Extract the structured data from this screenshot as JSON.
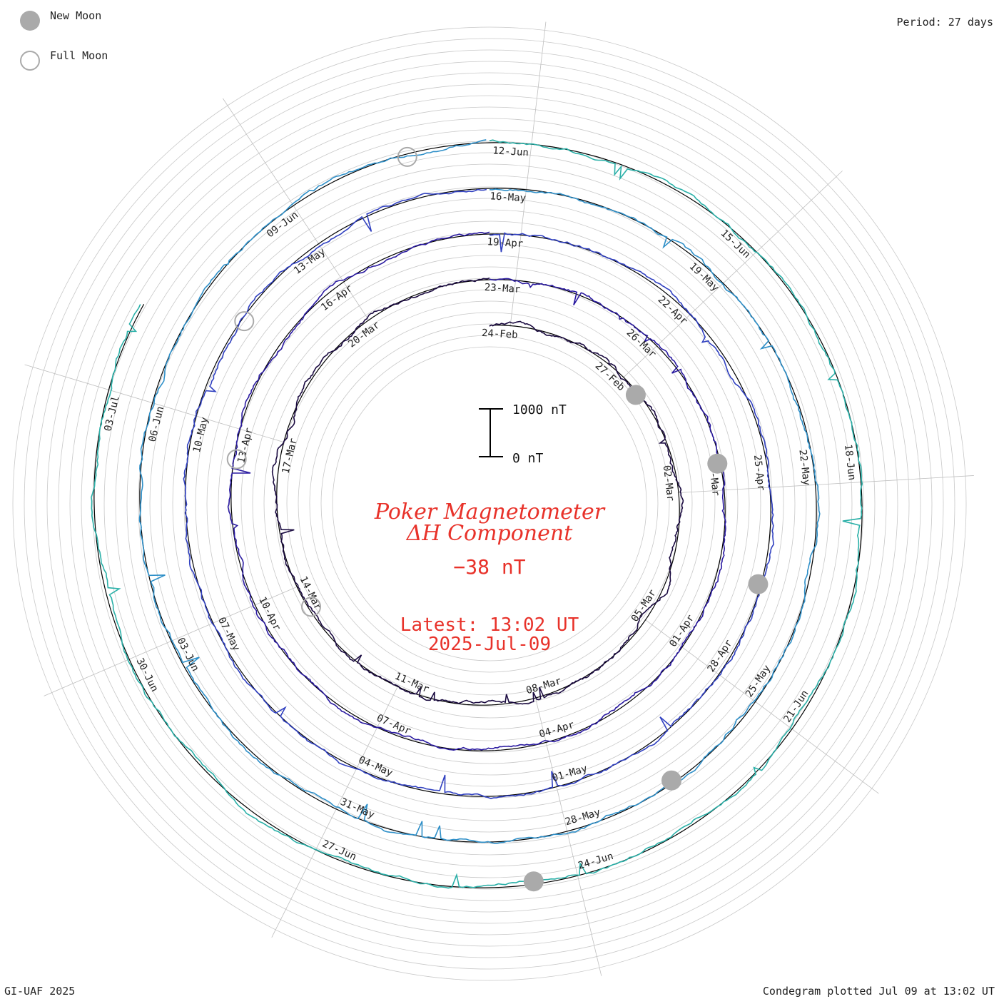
{
  "legend": {
    "new_moon_label": "New Moon",
    "full_moon_label": "Full Moon",
    "new_moon_color": "#aaaaaa",
    "full_moon_color": "#aaaaaa"
  },
  "header": {
    "period_label": "Period: 27 days"
  },
  "footer": {
    "credit": "GI-UAF 2025",
    "plotted": "Condegram plotted Jul 09 at 13:02 UT"
  },
  "center": {
    "title_line1": "Poker Magnetometer",
    "title_line2": "ΔH Component",
    "value": "−38 nT",
    "latest_label": "Latest: 13:02 UT",
    "latest_date": "2025-Jul-09",
    "text_color": "#e8322a",
    "scale_top": "1000 nT",
    "scale_bottom": "0 nT"
  },
  "chart_data": {
    "type": "line",
    "subtype": "condegram (spiral time series)",
    "title": "Poker Magnetometer ΔH Component",
    "period_days": 27,
    "start_date": "24-Feb",
    "end_date": "2025-Jul-09",
    "scale_bar_nT": [
      0,
      1000
    ],
    "date_labels": [
      "24-Feb",
      "27-Feb",
      "02-Mar",
      "05-Mar",
      "08-Mar",
      "11-Mar",
      "14-Mar",
      "17-Mar",
      "20-Mar",
      "23-Mar",
      "26-Mar",
      "29-Mar",
      "01-Apr",
      "04-Apr",
      "07-Apr",
      "10-Apr",
      "13-Apr",
      "16-Apr",
      "19-Apr",
      "22-Apr",
      "25-Apr",
      "28-Apr",
      "01-May",
      "04-May",
      "07-May",
      "10-May",
      "13-May",
      "16-May",
      "19-May",
      "22-May",
      "25-May",
      "28-May",
      "31-May",
      "03-Jun",
      "06-Jun",
      "09-Jun",
      "12-Jun",
      "15-Jun",
      "18-Jun",
      "21-Jun",
      "24-Jun",
      "27-Jun",
      "30-Jun",
      "03-Jul"
    ],
    "rotation_colors": [
      "#1a0a40",
      "#2a1aa0",
      "#3040c0",
      "#2e8fc8",
      "#2ab0a8",
      "#46c070",
      "#90c040",
      "#c0b020",
      "#c8902a",
      "#c85018",
      "#c01010"
    ],
    "new_moon_dates": [
      "28-Feb",
      "29-Mar",
      "27-Apr",
      "27-May",
      "25-Jun"
    ],
    "full_moon_dates": [
      "14-Mar",
      "13-Apr",
      "12-May",
      "11-Jun"
    ],
    "latest_value_nT": -38
  }
}
